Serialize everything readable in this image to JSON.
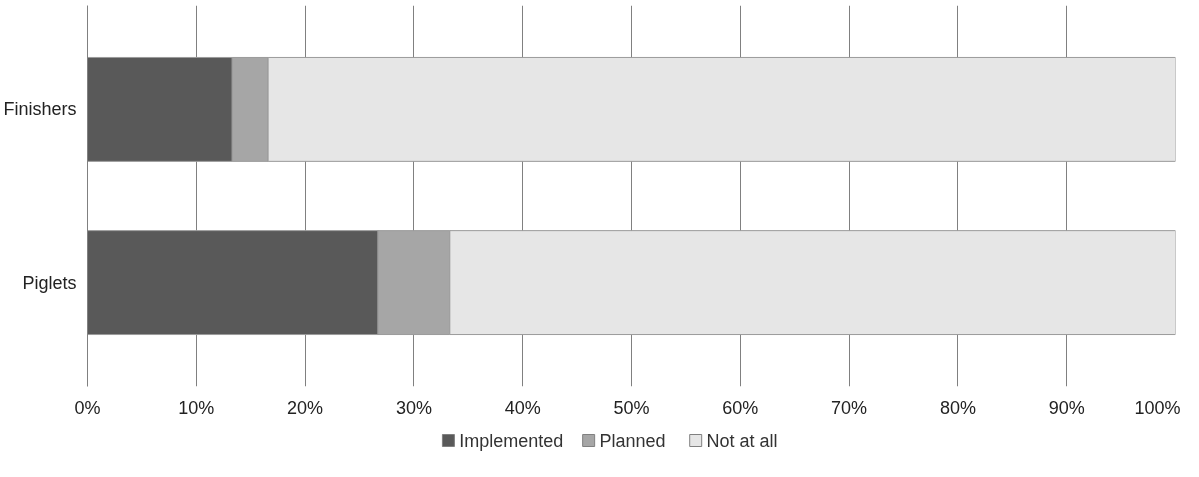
{
  "chart_data": {
    "type": "bar",
    "orientation": "horizontal",
    "stacked": true,
    "categories": [
      "Finishers",
      "Piglets"
    ],
    "series": [
      {
        "name": "Implemented",
        "color": "#595959",
        "values": [
          13.3,
          26.7
        ]
      },
      {
        "name": "Planned",
        "color": "#a6a6a6",
        "values": [
          3.3,
          6.6
        ]
      },
      {
        "name": "Not at all",
        "color": "#e6e6e6",
        "values": [
          83.4,
          66.7
        ]
      }
    ],
    "xlim": [
      0,
      100
    ],
    "xticks": [
      {
        "value": 0,
        "label": "0%"
      },
      {
        "value": 10,
        "label": "10%"
      },
      {
        "value": 20,
        "label": "20%"
      },
      {
        "value": 30,
        "label": "30%"
      },
      {
        "value": 40,
        "label": "40%"
      },
      {
        "value": 50,
        "label": "50%"
      },
      {
        "value": 60,
        "label": "60%"
      },
      {
        "value": 70,
        "label": "70%"
      },
      {
        "value": 80,
        "label": "80%"
      },
      {
        "value": 90,
        "label": "90%"
      },
      {
        "value": 100,
        "label": "100%"
      }
    ],
    "grid": "x",
    "legend": "bottom"
  }
}
